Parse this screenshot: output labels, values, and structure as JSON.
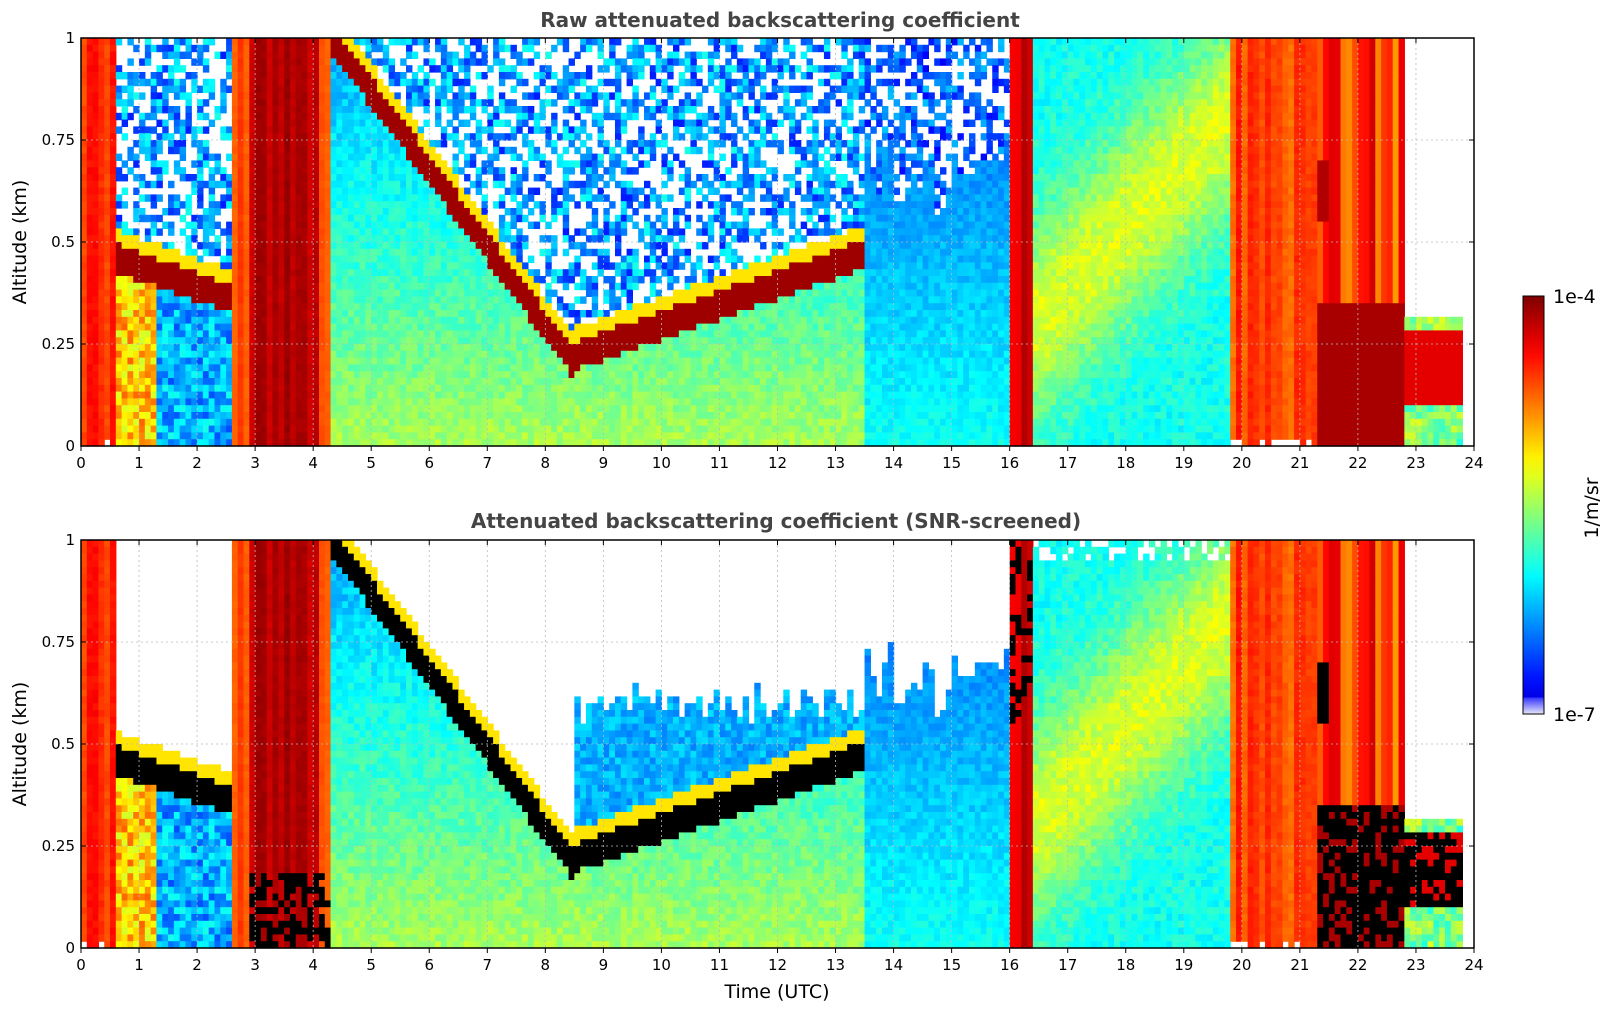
{
  "chart_data": [
    {
      "type": "heatmap",
      "title": "Raw attenuated backscattering coefficient",
      "xlabel": "",
      "ylabel": "Altitude (km)",
      "xlim": [
        0,
        24
      ],
      "ylim": [
        0,
        1
      ],
      "xticks": [
        "0",
        "1",
        "2",
        "3",
        "4",
        "5",
        "6",
        "7",
        "8",
        "9",
        "10",
        "11",
        "12",
        "13",
        "14",
        "15",
        "16",
        "17",
        "18",
        "19",
        "20",
        "21",
        "22",
        "23",
        "24"
      ],
      "yticks": [
        "0",
        "0.25",
        "0.5",
        "0.75",
        "1"
      ],
      "grid": true,
      "screened": false,
      "description_of_field": "log10 attenuated backscatter, colour scale 1e-7 to 1e-4 1/m/sr",
      "profile_segments": [
        {
          "t0": 0.0,
          "t1": 0.6,
          "regime": "thick-cloud-orange"
        },
        {
          "t0": 0.6,
          "t1": 2.6,
          "regime": "cloud-layer",
          "cloud_top_km": 0.55,
          "cloud_base_km": 0.38
        },
        {
          "t0": 2.6,
          "t1": 4.3,
          "regime": "thick-cloud-red"
        },
        {
          "t0": 4.3,
          "t1": 8.5,
          "regime": "descending-layer",
          "layer_start_km": 1.0,
          "layer_end_km": 0.2
        },
        {
          "t0": 8.5,
          "t1": 13.5,
          "regime": "clear-with-aerosol",
          "top_km": 0.4
        },
        {
          "t0": 13.5,
          "t1": 16.0,
          "regime": "clear-sky"
        },
        {
          "t0": 16.0,
          "t1": 16.4,
          "regime": "thick-cloud-red"
        },
        {
          "t0": 16.4,
          "t1": 19.8,
          "regime": "rising-aerosol"
        },
        {
          "t0": 19.8,
          "t1": 21.3,
          "regime": "thick-cloud-orange"
        },
        {
          "t0": 21.3,
          "t1": 22.8,
          "regime": "thick-cloud-dark-red"
        },
        {
          "t0": 22.8,
          "t1": 23.8,
          "regime": "low-cloud",
          "cloud_top_km": 0.3,
          "cloud_base_km": 0.1
        }
      ]
    },
    {
      "type": "heatmap",
      "title": "Attenuated backscattering coefficient (SNR-screened)",
      "xlabel": "Time (UTC)",
      "ylabel": "Altitude (km)",
      "xlim": [
        0,
        24
      ],
      "ylim": [
        0,
        1
      ],
      "xticks": [
        "0",
        "1",
        "2",
        "3",
        "4",
        "5",
        "6",
        "7",
        "8",
        "9",
        "10",
        "11",
        "12",
        "13",
        "14",
        "15",
        "16",
        "17",
        "18",
        "19",
        "20",
        "21",
        "22",
        "23",
        "24"
      ],
      "yticks": [
        "0",
        "0.25",
        "0.5",
        "0.75",
        "1"
      ],
      "grid": true,
      "screened": true,
      "description_of_field": "same field with low-SNR pixels removed (white) and saturated pixels shown black"
    }
  ],
  "colorbar": {
    "label": "1/m/sr",
    "min_label": "1e-7",
    "max_label": "1e-4",
    "min": 1e-07,
    "max": 0.0001,
    "colormap": "jet",
    "jet_stops": [
      "#00007f",
      "#0000ff",
      "#007fff",
      "#00ffff",
      "#7fff7f",
      "#ffff00",
      "#ff7f00",
      "#ff0000",
      "#7f0000"
    ],
    "low_end_color": "#e8e8f8"
  },
  "colors": {
    "title": "#444444",
    "grid": "#bbbbbb",
    "screened_saturation": "#000000",
    "background": "#ffffff"
  }
}
